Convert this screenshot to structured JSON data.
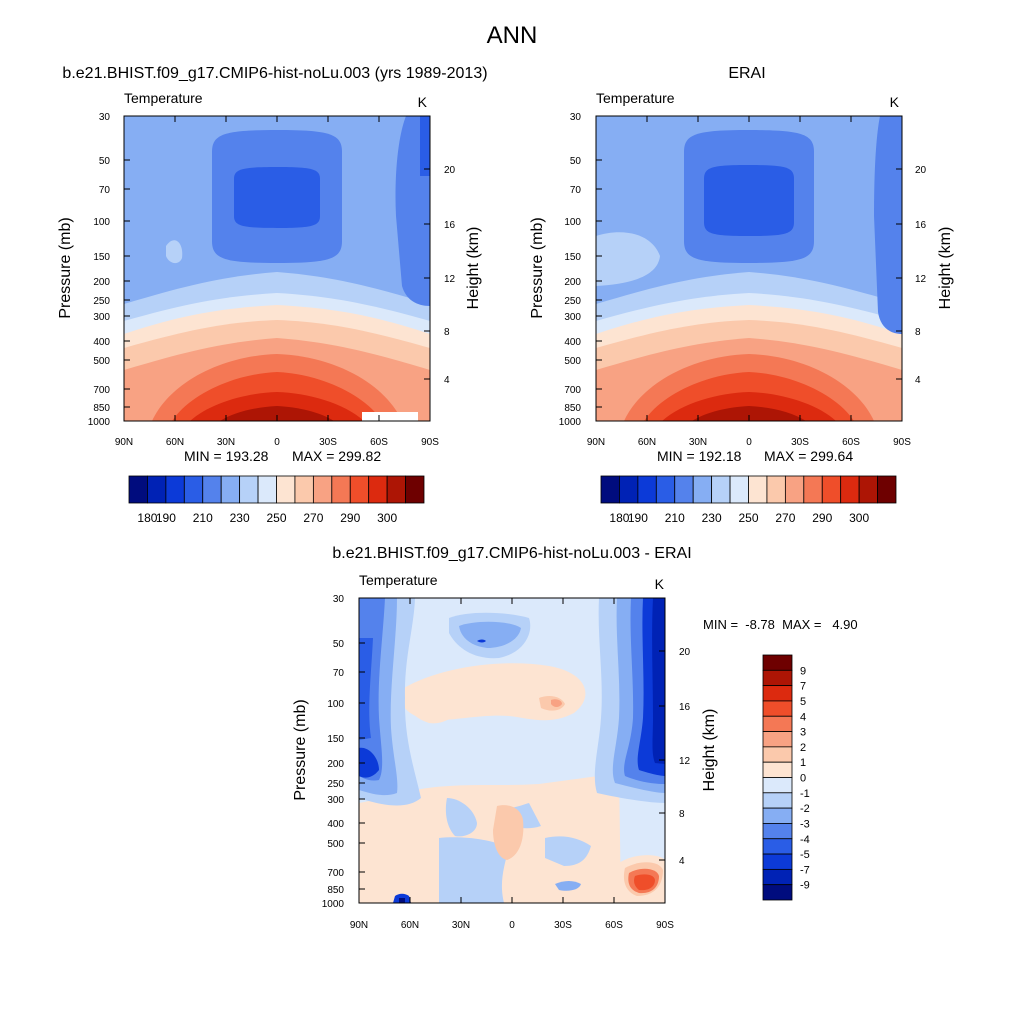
{
  "figure": {
    "title": "ANN"
  },
  "panels": {
    "model": {
      "header": "b.e21.BHIST.f09_g17.CMIP6-hist-noLu.003 (yrs 1989-2013)",
      "variable": "Temperature",
      "units": "K",
      "ylabel": "Pressure (mb)",
      "ylabel_right": "Height (km)",
      "min_label": "MIN = 193.28",
      "max_label": "MAX = 299.82"
    },
    "obs": {
      "header": "ERAI",
      "variable": "Temperature",
      "units": "K",
      "ylabel": "Pressure (mb)",
      "ylabel_right": "Height (km)",
      "min_label": "MIN = 192.18",
      "max_label": "MAX = 299.64"
    },
    "diff": {
      "header": "b.e21.BHIST.f09_g17.CMIP6-hist-noLu.003 - ERAI",
      "variable": "Temperature",
      "units": "K",
      "ylabel": "Pressure (mb)",
      "ylabel_right": "Height (km)",
      "minmax_label": "MIN =  -8.78  MAX =   4.90"
    }
  },
  "colors": {
    "abs_scale": [
      "#000c7e",
      "#0022b5",
      "#0c3ad8",
      "#2a5de6",
      "#5482ec",
      "#86aef3",
      "#b6d1f8",
      "#dbe9fb",
      "#fde4d2",
      "#fbc9ac",
      "#f8a283",
      "#f47855",
      "#ef4e2a",
      "#dc2a0f",
      "#ad1505",
      "#6e0000"
    ],
    "diff_scale": [
      "#000c7e",
      "#0022b5",
      "#0c3ad8",
      "#2a5de6",
      "#5482ec",
      "#86aef3",
      "#b6d1f8",
      "#dbe9fb",
      "#fde4d2",
      "#fbc9ac",
      "#f8a283",
      "#f47855",
      "#ef4e2a",
      "#dc2a0f",
      "#ad1505",
      "#6e0000"
    ]
  },
  "chart_data": [
    {
      "type": "heatmap",
      "name": "model",
      "title": "b.e21.BHIST.f09_g17.CMIP6-hist-noLu.003 (yrs 1989-2013)",
      "x_ticks": [
        "90N",
        "60N",
        "30N",
        "0",
        "30S",
        "60S",
        "90S"
      ],
      "x_values": [
        90,
        60,
        30,
        0,
        -30,
        -60,
        -90
      ],
      "y_ticks": [
        "30",
        "50",
        "70",
        "100",
        "150",
        "200",
        "250",
        "300",
        "400",
        "500",
        "700",
        "850",
        "1000"
      ],
      "y_values": [
        30,
        50,
        70,
        100,
        150,
        200,
        250,
        300,
        400,
        500,
        700,
        850,
        1000
      ],
      "y_scale": "log",
      "ylim": [
        1000,
        30
      ],
      "height_ticks": [
        "4",
        "8",
        "12",
        "16",
        "20"
      ],
      "height_values": [
        4,
        8,
        12,
        16,
        20
      ],
      "min": 193.28,
      "max": 299.82
    },
    {
      "type": "heatmap",
      "name": "obs",
      "title": "ERAI",
      "x_ticks": [
        "90N",
        "60N",
        "30N",
        "0",
        "30S",
        "60S",
        "90S"
      ],
      "x_values": [
        90,
        60,
        30,
        0,
        -30,
        -60,
        -90
      ],
      "y_ticks": [
        "30",
        "50",
        "70",
        "100",
        "150",
        "200",
        "250",
        "300",
        "400",
        "500",
        "700",
        "850",
        "1000"
      ],
      "y_values": [
        30,
        50,
        70,
        100,
        150,
        200,
        250,
        300,
        400,
        500,
        700,
        850,
        1000
      ],
      "y_scale": "log",
      "ylim": [
        1000,
        30
      ],
      "height_ticks": [
        "4",
        "8",
        "12",
        "16",
        "20"
      ],
      "height_values": [
        4,
        8,
        12,
        16,
        20
      ],
      "min": 192.18,
      "max": 299.64
    },
    {
      "type": "heatmap",
      "name": "diff",
      "title": "b.e21.BHIST.f09_g17.CMIP6-hist-noLu.003 - ERAI",
      "x_ticks": [
        "90N",
        "60N",
        "30N",
        "0",
        "30S",
        "60S",
        "90S"
      ],
      "x_values": [
        90,
        60,
        30,
        0,
        -30,
        -60,
        -90
      ],
      "y_ticks": [
        "30",
        "50",
        "70",
        "100",
        "150",
        "200",
        "250",
        "300",
        "400",
        "500",
        "700",
        "850",
        "1000"
      ],
      "y_values": [
        30,
        50,
        70,
        100,
        150,
        200,
        250,
        300,
        400,
        500,
        700,
        850,
        1000
      ],
      "y_scale": "log",
      "ylim": [
        1000,
        30
      ],
      "height_ticks": [
        "4",
        "8",
        "12",
        "16",
        "20"
      ],
      "height_values": [
        4,
        8,
        12,
        16,
        20
      ],
      "min": -8.78,
      "max": 4.9
    }
  ],
  "colorbars": {
    "abs": {
      "orientation": "horizontal",
      "levels": [
        180,
        190,
        200,
        210,
        220,
        230,
        240,
        250,
        260,
        270,
        280,
        290,
        295,
        300,
        305
      ],
      "shown_labels": [
        "180",
        "190",
        "210",
        "230",
        "250",
        "270",
        "290",
        "300"
      ],
      "shown_positions": [
        1,
        2,
        4,
        6,
        8,
        10,
        12,
        14
      ]
    },
    "diff": {
      "orientation": "vertical",
      "labels": [
        "9",
        "7",
        "5",
        "4",
        "3",
        "2",
        "1",
        "0",
        "-1",
        "-2",
        "-3",
        "-4",
        "-5",
        "-7",
        "-9"
      ]
    }
  }
}
